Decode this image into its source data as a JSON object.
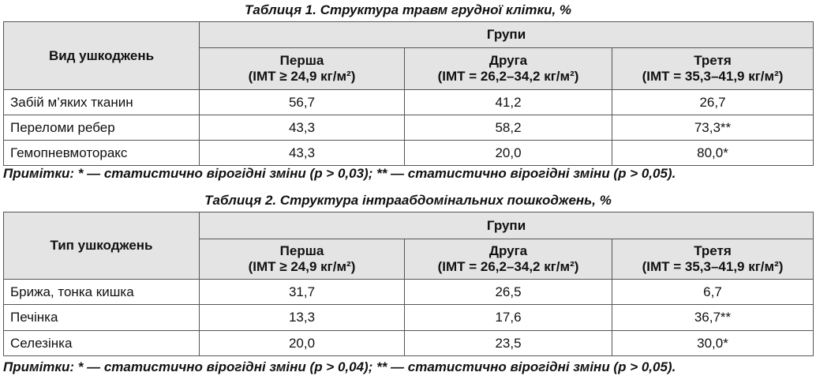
{
  "tables": [
    {
      "title": "Таблиця 1. Структура травм грудної клітки, %",
      "header": {
        "row_label": "Вид ушкоджень",
        "group_label": "Групи",
        "groups": [
          {
            "name": "Перша",
            "bmi": "(ІМТ ≥ 24,9 кг/м²)"
          },
          {
            "name": "Друга",
            "bmi": "(ІМТ = 26,2–34,2 кг/м²)"
          },
          {
            "name": "Третя",
            "bmi": "(ІМТ = 35,3–41,9 кг/м²)"
          }
        ]
      },
      "rows": [
        {
          "label": "Забій м’яких тканин",
          "values": [
            "56,7",
            "41,2",
            "26,7"
          ]
        },
        {
          "label": "Переломи ребер",
          "values": [
            "43,3",
            "58,2",
            "73,3**"
          ]
        },
        {
          "label": "Гемопневмоторакс",
          "values": [
            "43,3",
            "20,0",
            "80,0*"
          ]
        }
      ],
      "note": "Примітки: * — статистично вірогідні зміни (p > 0,03); ** — статистично вірогідні зміни (p > 0,05)."
    },
    {
      "title": "Таблиця 2. Структура інтраабдомінальних пошкоджень, %",
      "header": {
        "row_label": "Тип ушкоджень",
        "group_label": "Групи",
        "groups": [
          {
            "name": "Перша",
            "bmi": "(ІМТ ≥ 24,9 кг/м²)"
          },
          {
            "name": "Друга",
            "bmi": "(ІМТ = 26,2–34,2 кг/м²)"
          },
          {
            "name": "Третя",
            "bmi": "(ІМТ = 35,3–41,9 кг/м²)"
          }
        ]
      },
      "rows": [
        {
          "label": "Брижа, тонка кишка",
          "values": [
            "31,7",
            "26,5",
            "6,7"
          ]
        },
        {
          "label": "Печінка",
          "values": [
            "13,3",
            "17,6",
            "36,7**"
          ]
        },
        {
          "label": "Селезінка",
          "values": [
            "20,0",
            "23,5",
            "30,0*"
          ]
        }
      ],
      "note": "Примітки: * — статистично вірогідні зміни (p > 0,04); ** — статистично вірогідні зміни (p > 0,05)."
    }
  ]
}
